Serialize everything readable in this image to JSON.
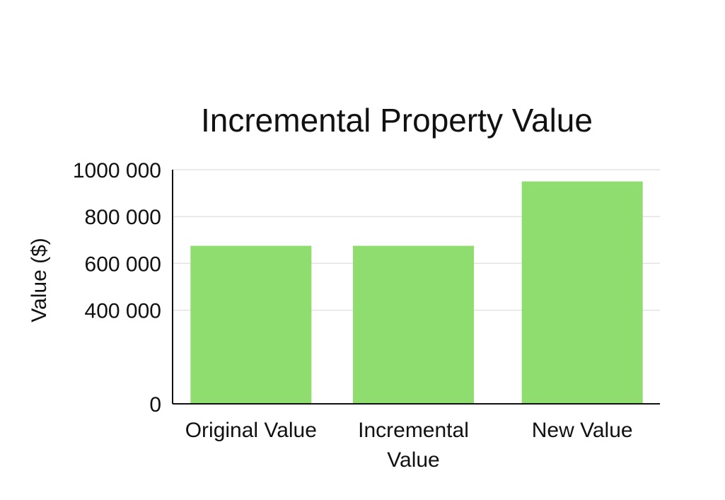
{
  "chart_data": {
    "type": "bar",
    "title": "Incremental Property Value",
    "ylabel": "Value ($)",
    "xlabel": "",
    "categories": [
      [
        "Original Value"
      ],
      [
        "Incremental",
        "Value"
      ],
      [
        "New Value"
      ]
    ],
    "values": [
      675000,
      675000,
      950000
    ],
    "ylim": [
      0,
      1000000
    ],
    "yticks": [
      0,
      400000,
      600000,
      800000,
      1000000
    ],
    "ytick_labels": [
      "0",
      "400 000",
      "600 000",
      "800 000",
      "1000 000"
    ],
    "grid": true,
    "legend": "none"
  },
  "colors": {
    "bar": "#8fdd6f",
    "grid": "#e3e3e3",
    "axis": "#111111",
    "text": "#111111"
  }
}
